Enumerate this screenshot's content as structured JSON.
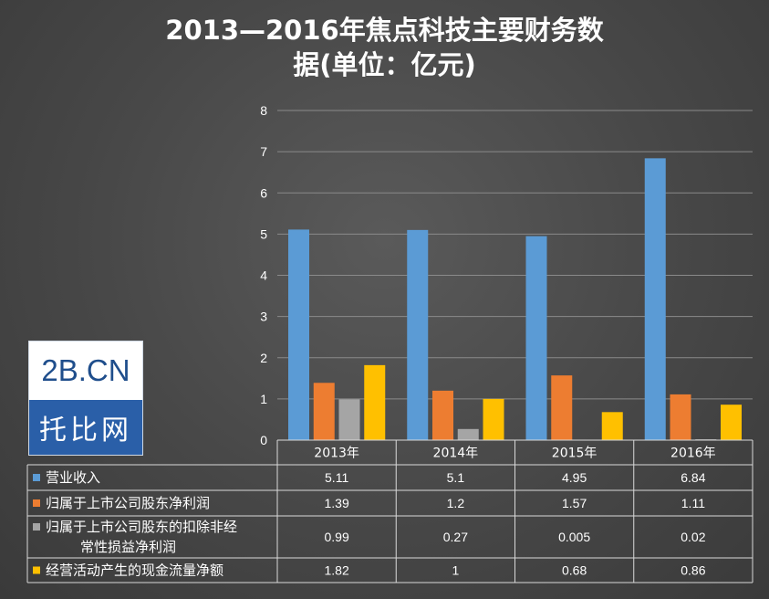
{
  "chart_data": {
    "type": "bar",
    "title_line1": "2013—2016年焦点科技主要财务数",
    "title_line2": "据(单位：亿元)",
    "categories": [
      "2013年",
      "2014年",
      "2015年",
      "2016年"
    ],
    "ylim": [
      0,
      8
    ],
    "yticks": [
      "0",
      "1",
      "2",
      "3",
      "4",
      "5",
      "6",
      "7",
      "8"
    ],
    "grid": true,
    "series": [
      {
        "name": "营业收入",
        "color": "#5b9bd5",
        "values": [
          5.11,
          5.1,
          4.95,
          6.84
        ],
        "labels": [
          "5.11",
          "5.1",
          "4.95",
          "6.84"
        ]
      },
      {
        "name": "归属于上市公司股东净利润",
        "color": "#ed7d31",
        "values": [
          1.39,
          1.2,
          1.57,
          1.11
        ],
        "labels": [
          "1.39",
          "1.2",
          "1.57",
          "1.11"
        ]
      },
      {
        "name_line1": "归属于上市公司股东的扣除非经",
        "name_line2": "常性损益净利润",
        "color": "#a5a5a5",
        "values": [
          0.99,
          0.27,
          0.005,
          0.02
        ],
        "labels": [
          "0.99",
          "0.27",
          "0.005",
          "0.02"
        ]
      },
      {
        "name": "经营活动产生的现金流量净额",
        "color": "#ffc000",
        "values": [
          1.82,
          1,
          0.68,
          0.86
        ],
        "labels": [
          "1.82",
          "1",
          "0.68",
          "0.86"
        ]
      }
    ]
  },
  "logo": {
    "text_top": "2B.CN",
    "text_bottom": "托比网"
  }
}
